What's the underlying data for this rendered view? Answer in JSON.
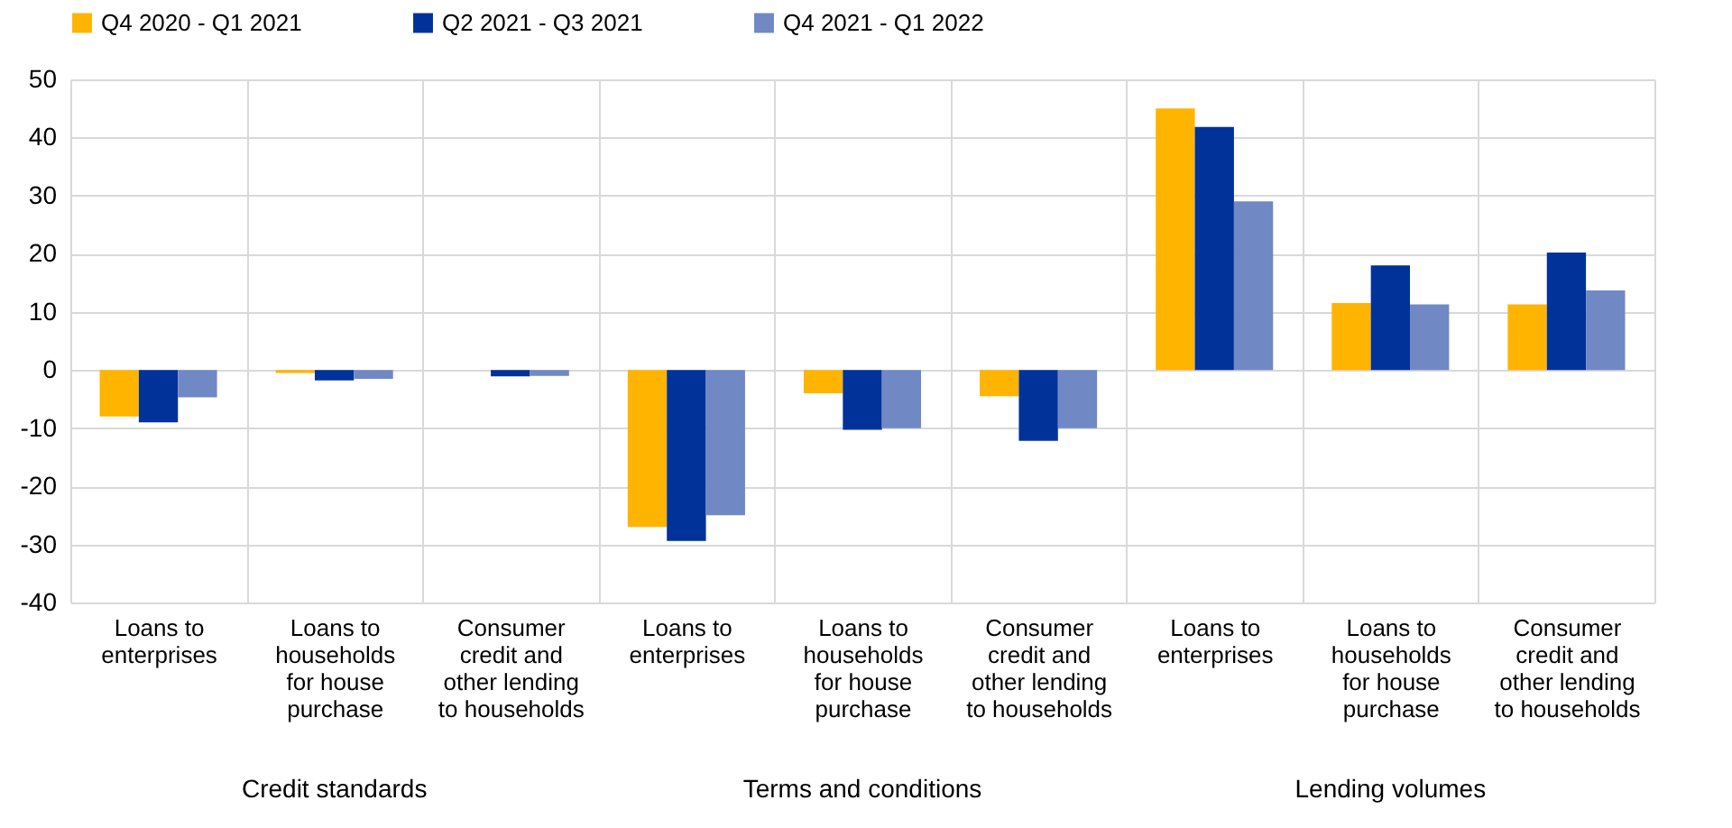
{
  "chart_data": {
    "type": "bar",
    "categories": [
      "Loans to enterprises",
      "Loans to households for house purchase",
      "Consumer credit and other lending to households",
      "Loans to enterprises",
      "Loans to households for house purchase",
      "Consumer credit and other lending to households",
      "Loans to enterprises",
      "Loans to households for house purchase",
      "Consumer credit and other lending to households"
    ],
    "series": [
      {
        "name": "Q4 2020 - Q1 2021",
        "color": "#ffb400",
        "values": [
          -8,
          -0.5,
          0,
          -27,
          -4,
          -4.5,
          45,
          11.5,
          11.3
        ]
      },
      {
        "name": "Q2 2021 - Q3 2021",
        "color": "#003299",
        "values": [
          -9,
          -1.8,
          -1.1,
          -29.4,
          -10.3,
          -12.2,
          41.8,
          18,
          20.2
        ]
      },
      {
        "name": "Q4 2021 - Q1 2022",
        "color": "#7088c4",
        "values": [
          -4.7,
          -1.5,
          -1,
          -25,
          -10,
          -10,
          29,
          11.3,
          13.7
        ]
      }
    ],
    "annotations": [
      "Credit standards",
      "Terms and conditions",
      "Lending volumes"
    ],
    "ylim": [
      -40,
      50
    ],
    "yticks": [
      -40,
      -30,
      -20,
      -10,
      0,
      10,
      20,
      30,
      40,
      50
    ],
    "grid": true,
    "legend": "top"
  }
}
